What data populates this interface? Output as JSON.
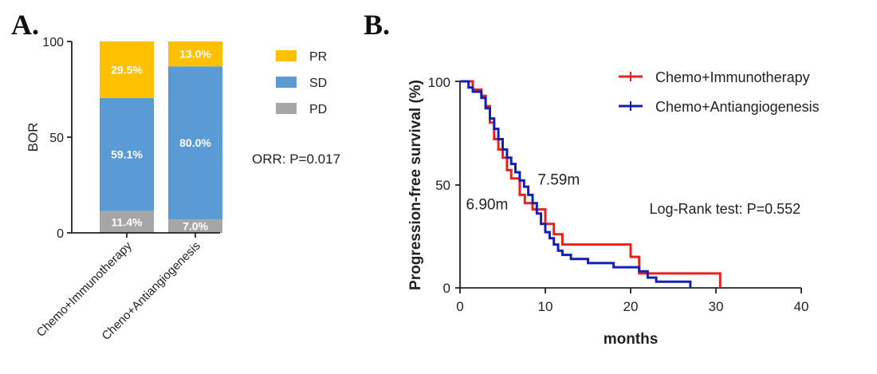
{
  "panel_a": {
    "label": "A.",
    "chart_data": {
      "type": "bar",
      "stacked": true,
      "title": "",
      "xlabel": "",
      "ylabel": "BOR",
      "ylim": [
        0,
        100
      ],
      "yticks": [
        "0",
        "50",
        "100"
      ],
      "categories": [
        "Chemo+Immunotherapy",
        "Cheno+Antiangiogenesis"
      ],
      "series": [
        {
          "name": "PD",
          "color": "#a6a6a6",
          "values": [
            11.4,
            7.0
          ],
          "labels": [
            "11.4%",
            "7.0%"
          ]
        },
        {
          "name": "SD",
          "color": "#5b9bd5",
          "values": [
            59.1,
            80.0
          ],
          "labels": [
            "59.1%",
            "80.0%"
          ]
        },
        {
          "name": "PR",
          "color": "#ffc000",
          "values": [
            29.5,
            13.0
          ],
          "labels": [
            "29.5%",
            "13.0%"
          ]
        }
      ],
      "legend": [
        "PR",
        "SD",
        "PD"
      ],
      "legend_position": "right",
      "annotation": "ORR: P=0.017"
    }
  },
  "panel_b": {
    "label": "B.",
    "chart_data": {
      "type": "line",
      "step": true,
      "title": "",
      "xlabel": "months",
      "ylabel": "Progression-free survival (%)",
      "xlim": [
        0,
        40
      ],
      "ylim": [
        0,
        100
      ],
      "xticks": [
        "0",
        "10",
        "20",
        "30",
        "40"
      ],
      "yticks": [
        "0",
        "50",
        "100"
      ],
      "legend_position": "top-right",
      "series": [
        {
          "name": "Chemo+Immunotherapy",
          "color": "#e8231f",
          "points": [
            [
              0,
              100
            ],
            [
              1.5,
              100
            ],
            [
              1.5,
              96
            ],
            [
              2.5,
              96
            ],
            [
              2.5,
              93
            ],
            [
              3,
              93
            ],
            [
              3,
              88
            ],
            [
              3.5,
              88
            ],
            [
              3.5,
              80
            ],
            [
              4,
              80
            ],
            [
              4,
              72
            ],
            [
              4.5,
              72
            ],
            [
              4.5,
              67
            ],
            [
              5,
              67
            ],
            [
              5,
              63
            ],
            [
              5.5,
              63
            ],
            [
              5.5,
              57
            ],
            [
              6,
              57
            ],
            [
              6,
              53
            ],
            [
              7,
              53
            ],
            [
              7,
              45
            ],
            [
              7.6,
              45
            ],
            [
              7.6,
              41
            ],
            [
              8.5,
              41
            ],
            [
              8.5,
              38
            ],
            [
              10,
              38
            ],
            [
              10,
              31
            ],
            [
              11,
              31
            ],
            [
              11,
              26
            ],
            [
              12,
              26
            ],
            [
              12,
              21
            ],
            [
              20,
              21
            ],
            [
              20,
              15
            ],
            [
              21,
              15
            ],
            [
              21,
              7
            ],
            [
              30.5,
              7
            ],
            [
              30.5,
              0
            ]
          ]
        },
        {
          "name": "Chemo+Antiangiogenesis",
          "color": "#1520b0",
          "points": [
            [
              0,
              100
            ],
            [
              1,
              100
            ],
            [
              1,
              97
            ],
            [
              1.5,
              97
            ],
            [
              1.5,
              95
            ],
            [
              2.5,
              95
            ],
            [
              2.5,
              92
            ],
            [
              3,
              92
            ],
            [
              3,
              87
            ],
            [
              3.5,
              87
            ],
            [
              3.5,
              82
            ],
            [
              4,
              82
            ],
            [
              4,
              77
            ],
            [
              4.5,
              77
            ],
            [
              4.5,
              72
            ],
            [
              5,
              72
            ],
            [
              5,
              67
            ],
            [
              5.5,
              67
            ],
            [
              5.5,
              63
            ],
            [
              6,
              63
            ],
            [
              6,
              60
            ],
            [
              6.5,
              60
            ],
            [
              6.5,
              56
            ],
            [
              7,
              56
            ],
            [
              7,
              52
            ],
            [
              7.5,
              52
            ],
            [
              7.5,
              49
            ],
            [
              8,
              49
            ],
            [
              8,
              45
            ],
            [
              8.5,
              45
            ],
            [
              8.5,
              41
            ],
            [
              9,
              41
            ],
            [
              9,
              36
            ],
            [
              9.5,
              36
            ],
            [
              9.5,
              31
            ],
            [
              10,
              31
            ],
            [
              10,
              27
            ],
            [
              10.5,
              27
            ],
            [
              10.5,
              24
            ],
            [
              11,
              24
            ],
            [
              11,
              21
            ],
            [
              11.5,
              21
            ],
            [
              11.5,
              18
            ],
            [
              12,
              18
            ],
            [
              12,
              16
            ],
            [
              13,
              16
            ],
            [
              13,
              14
            ],
            [
              15,
              14
            ],
            [
              15,
              12
            ],
            [
              18,
              12
            ],
            [
              18,
              10
            ],
            [
              21,
              10
            ],
            [
              21,
              8
            ],
            [
              22,
              8
            ],
            [
              22,
              5
            ],
            [
              23,
              5
            ],
            [
              23,
              3
            ],
            [
              27,
              3
            ],
            [
              27,
              0
            ]
          ]
        }
      ],
      "annotations": [
        {
          "text": "7.59m",
          "x": 9.1,
          "y": 50
        },
        {
          "text": "6.90m",
          "x": 0.7,
          "y": 38
        },
        {
          "text": "Log-Rank test: P=0.552",
          "x": 22.2,
          "y": 36
        }
      ]
    }
  }
}
